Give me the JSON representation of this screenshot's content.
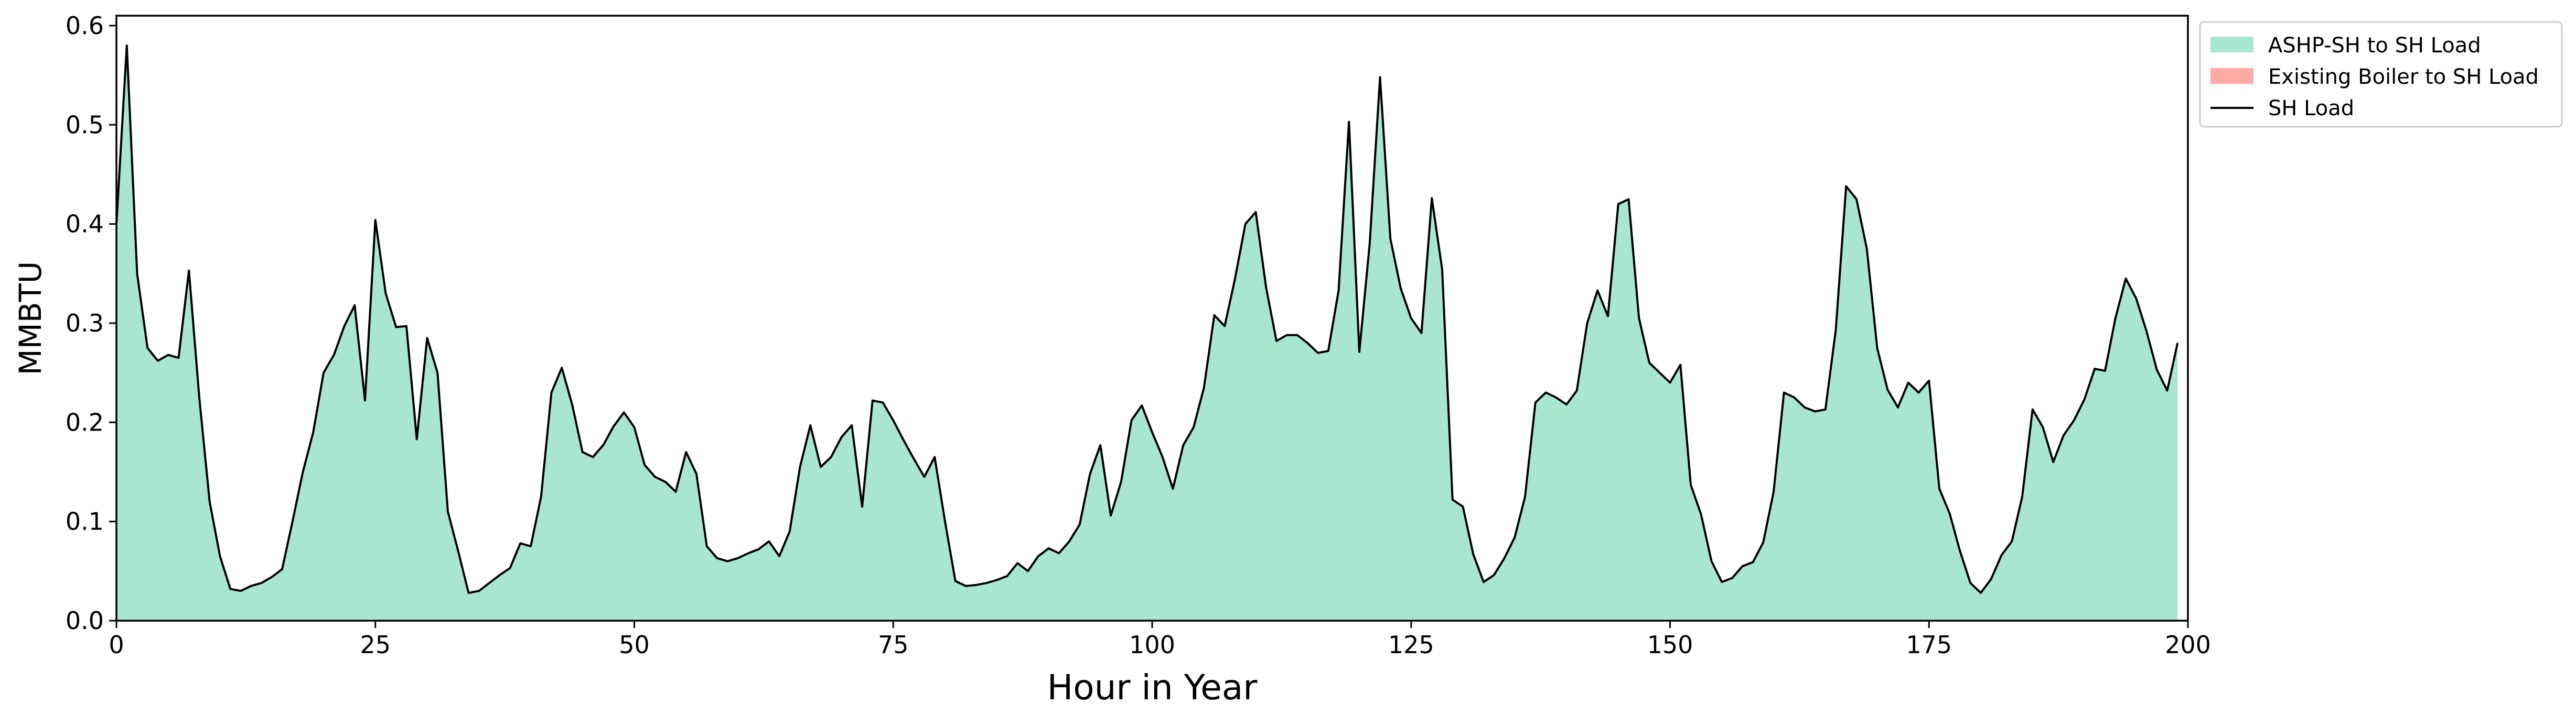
{
  "chart_data": {
    "type": "area",
    "title": "",
    "xlabel": "Hour in Year",
    "ylabel": "MMBTU",
    "xlim": [
      0,
      200
    ],
    "ylim": [
      0,
      0.61
    ],
    "grid": false,
    "legend_position": "outside-top-right",
    "x_ticks": [
      0,
      25,
      50,
      75,
      100,
      125,
      150,
      175,
      200
    ],
    "x_tick_labels": [
      "0",
      "25",
      "50",
      "75",
      "100",
      "125",
      "150",
      "175",
      "200"
    ],
    "y_ticks": [
      0.0,
      0.1,
      0.2,
      0.3,
      0.4,
      0.5,
      0.6
    ],
    "y_tick_labels": [
      "0.0",
      "0.1",
      "0.2",
      "0.3",
      "0.4",
      "0.5",
      "0.6"
    ],
    "x": [
      0,
      1,
      2,
      3,
      4,
      5,
      6,
      7,
      8,
      9,
      10,
      11,
      12,
      13,
      14,
      15,
      16,
      17,
      18,
      19,
      20,
      21,
      22,
      23,
      24,
      25,
      26,
      27,
      28,
      29,
      30,
      31,
      32,
      33,
      34,
      35,
      36,
      37,
      38,
      39,
      40,
      41,
      42,
      43,
      44,
      45,
      46,
      47,
      48,
      49,
      50,
      51,
      52,
      53,
      54,
      55,
      56,
      57,
      58,
      59,
      60,
      61,
      62,
      63,
      64,
      65,
      66,
      67,
      68,
      69,
      70,
      71,
      72,
      73,
      74,
      75,
      76,
      77,
      78,
      79,
      80,
      81,
      82,
      83,
      84,
      85,
      86,
      87,
      88,
      89,
      90,
      91,
      92,
      93,
      94,
      95,
      96,
      97,
      98,
      99,
      100,
      101,
      102,
      103,
      104,
      105,
      106,
      107,
      108,
      109,
      110,
      111,
      112,
      113,
      114,
      115,
      116,
      117,
      118,
      119,
      120,
      121,
      122,
      123,
      124,
      125,
      126,
      127,
      128,
      129,
      130,
      131,
      132,
      133,
      134,
      135,
      136,
      137,
      138,
      139,
      140,
      141,
      142,
      143,
      144,
      145,
      146,
      147,
      148,
      149,
      150,
      151,
      152,
      153,
      154,
      155,
      156,
      157,
      158,
      159,
      160,
      161,
      162,
      163,
      164,
      165,
      166,
      167,
      168,
      169,
      170,
      171,
      172,
      173,
      174,
      175,
      176,
      177,
      178,
      179,
      180,
      181,
      182,
      183,
      184,
      185,
      186,
      187,
      188,
      189,
      190,
      191,
      192,
      193,
      194,
      195,
      196,
      197,
      198,
      199
    ],
    "series": [
      {
        "name": "ASHP-SH to SH Load",
        "kind": "area",
        "color": "#a8e6cf",
        "values": [
          0.4,
          0.58,
          0.35,
          0.275,
          0.262,
          0.268,
          0.265,
          0.353,
          0.225,
          0.12,
          0.065,
          0.032,
          0.03,
          0.035,
          0.038,
          0.044,
          0.052,
          0.1,
          0.15,
          0.19,
          0.25,
          0.268,
          0.297,
          0.318,
          0.222,
          0.404,
          0.33,
          0.296,
          0.297,
          0.183,
          0.285,
          0.25,
          0.11,
          0.07,
          0.028,
          0.03,
          0.038,
          0.046,
          0.053,
          0.078,
          0.075,
          0.125,
          0.23,
          0.255,
          0.218,
          0.17,
          0.165,
          0.177,
          0.196,
          0.21,
          0.195,
          0.157,
          0.145,
          0.14,
          0.13,
          0.17,
          0.148,
          0.075,
          0.063,
          0.06,
          0.063,
          0.068,
          0.072,
          0.08,
          0.065,
          0.09,
          0.155,
          0.197,
          0.155,
          0.165,
          0.185,
          0.197,
          0.115,
          0.222,
          0.22,
          0.202,
          0.182,
          0.163,
          0.145,
          0.165,
          0.1,
          0.04,
          0.035,
          0.036,
          0.038,
          0.041,
          0.045,
          0.058,
          0.05,
          0.065,
          0.073,
          0.068,
          0.08,
          0.097,
          0.148,
          0.177,
          0.106,
          0.14,
          0.202,
          0.217,
          0.19,
          0.165,
          0.133,
          0.177,
          0.195,
          0.235,
          0.308,
          0.297,
          0.345,
          0.4,
          0.412,
          0.336,
          0.282,
          0.288,
          0.288,
          0.28,
          0.27,
          0.272,
          0.333,
          0.503,
          0.271,
          0.38,
          0.548,
          0.385,
          0.335,
          0.305,
          0.29,
          0.426,
          0.354,
          0.122,
          0.115,
          0.067,
          0.039,
          0.046,
          0.063,
          0.084,
          0.125,
          0.22,
          0.23,
          0.225,
          0.218,
          0.232,
          0.3,
          0.333,
          0.307,
          0.42,
          0.425,
          0.305,
          0.26,
          0.25,
          0.24,
          0.258,
          0.137,
          0.107,
          0.06,
          0.039,
          0.043,
          0.055,
          0.059,
          0.079,
          0.13,
          0.23,
          0.225,
          0.215,
          0.211,
          0.213,
          0.293,
          0.438,
          0.425,
          0.375,
          0.275,
          0.233,
          0.215,
          0.24,
          0.23,
          0.242,
          0.133,
          0.108,
          0.07,
          0.038,
          0.028,
          0.042,
          0.066,
          0.08,
          0.125,
          0.213,
          0.195,
          0.16,
          0.187,
          0.202,
          0.223,
          0.254,
          0.252,
          0.305,
          0.345,
          0.325,
          0.292,
          0.253,
          0.232,
          0.28
        ]
      },
      {
        "name": "Existing Boiler to SH Load",
        "kind": "area",
        "color": "#ffaaa5",
        "values": [
          0,
          0,
          0,
          0,
          0,
          0,
          0,
          0,
          0,
          0,
          0,
          0,
          0,
          0,
          0,
          0,
          0,
          0,
          0,
          0,
          0,
          0,
          0,
          0,
          0,
          0,
          0,
          0,
          0,
          0,
          0,
          0,
          0,
          0,
          0,
          0,
          0,
          0,
          0,
          0,
          0,
          0,
          0,
          0,
          0,
          0,
          0,
          0,
          0,
          0,
          0,
          0,
          0,
          0,
          0,
          0,
          0,
          0,
          0,
          0,
          0,
          0,
          0,
          0,
          0,
          0,
          0,
          0,
          0,
          0,
          0,
          0,
          0,
          0,
          0,
          0,
          0,
          0,
          0,
          0,
          0,
          0,
          0,
          0,
          0,
          0,
          0,
          0,
          0,
          0,
          0,
          0,
          0,
          0,
          0,
          0,
          0,
          0,
          0,
          0,
          0,
          0,
          0,
          0,
          0,
          0,
          0,
          0,
          0,
          0,
          0,
          0,
          0,
          0,
          0,
          0,
          0,
          0,
          0,
          0,
          0,
          0,
          0,
          0,
          0,
          0,
          0,
          0,
          0,
          0,
          0,
          0,
          0,
          0,
          0,
          0,
          0,
          0,
          0,
          0,
          0,
          0,
          0,
          0,
          0,
          0,
          0,
          0,
          0,
          0,
          0,
          0,
          0,
          0,
          0,
          0,
          0,
          0,
          0,
          0,
          0,
          0,
          0,
          0,
          0,
          0,
          0,
          0,
          0,
          0,
          0,
          0,
          0,
          0,
          0,
          0,
          0,
          0,
          0,
          0,
          0,
          0,
          0,
          0,
          0,
          0,
          0,
          0,
          0,
          0,
          0,
          0,
          0,
          0,
          0,
          0,
          0,
          0,
          0,
          0
        ]
      },
      {
        "name": "SH Load",
        "kind": "line",
        "color": "#000000",
        "values_same_as": "ASHP-SH to SH Load"
      }
    ]
  },
  "legend": {
    "items": [
      {
        "label": "ASHP-SH to SH Load",
        "color": "#a8e6cf",
        "swatch": "patch"
      },
      {
        "label": "Existing Boiler to SH Load",
        "color": "#ffaaa5",
        "swatch": "patch"
      },
      {
        "label": "SH Load",
        "color": "#000000",
        "swatch": "line"
      }
    ]
  }
}
